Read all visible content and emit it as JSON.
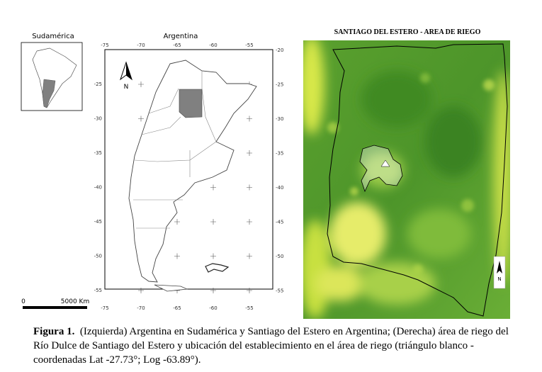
{
  "left_panel": {
    "inset_title": "Sudamérica",
    "map_title": "Argentina",
    "north_label": "N",
    "top_ticks": [
      "-75",
      "-70",
      "-65",
      "-60",
      "-55"
    ],
    "bottom_ticks": [
      "-75",
      "-70",
      "-65",
      "-60",
      "-55"
    ],
    "left_ticks": [
      "-25",
      "-30",
      "-35",
      "-40",
      "-45",
      "-50",
      "-55"
    ],
    "right_ticks": [
      "-20",
      "-25",
      "-30",
      "-35",
      "-40",
      "-45",
      "-50",
      "-55"
    ],
    "scale_bar": {
      "start": "0",
      "end": "5000 Km"
    }
  },
  "right_panel": {
    "title": "SANTIAGO DEL ESTERO - AREA DE RIEGO",
    "north_label": "N"
  },
  "caption": {
    "label": "Figura 1.",
    "text": "(Izquierda) Argentina en Sudamérica y Santiago del Estero en Argentina; (Derecha) área de riego del Río Dulce de Santiago del Estero y ubicación del establecimiento en el área de riego (triángulo blanco - coordenadas Lat -27.73°; Log -63.89°)."
  }
}
